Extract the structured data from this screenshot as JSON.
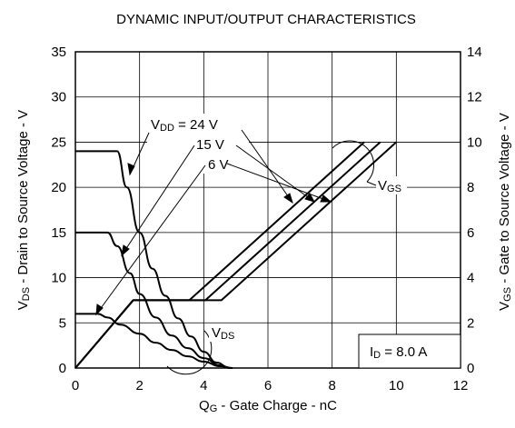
{
  "chart_data": {
    "type": "line",
    "title": "DYNAMIC INPUT/OUTPUT CHARACTERISTICS",
    "xlabel": "Q",
    "xlabel_sub": "G",
    "xlabel_rest": " - Gate Charge - nC",
    "ylabel_left": "V",
    "ylabel_left_sub": "DS",
    "ylabel_left_rest": " - Drain to Source Voltage - V",
    "ylabel_right": "V",
    "ylabel_right_sub": "GS",
    "ylabel_right_rest": " - Gate to Source Voltage - V",
    "xlim": [
      0,
      12
    ],
    "ylim_left": [
      0,
      35
    ],
    "ylim_right": [
      0,
      14
    ],
    "xticks": [
      "0",
      "2",
      "4",
      "6",
      "8",
      "10",
      "12"
    ],
    "yticks_left": [
      "0",
      "5",
      "10",
      "15",
      "20",
      "25",
      "30",
      "35"
    ],
    "yticks_right": [
      "0",
      "2",
      "4",
      "6",
      "8",
      "10",
      "12",
      "14"
    ],
    "grid": true,
    "annotations": {
      "vdd_prefix": "V",
      "vdd_sub": "DD",
      "vdd_24": " = 24 V",
      "vdd_15": "15 V",
      "vdd_6": "6 V",
      "vgs_main": "V",
      "vgs_sub": "GS",
      "vds_main": "V",
      "vds_sub": "DS",
      "id_main": "I",
      "id_sub": "D",
      "id_rest": " = 8.0 A"
    },
    "series": [
      {
        "group": "VDS",
        "vdd": "24 V",
        "axis": "left",
        "x": [
          0,
          1.3,
          1.6,
          2.0,
          2.4,
          2.8,
          3.2,
          3.6,
          4.0,
          4.4,
          4.8
        ],
        "y": [
          24,
          24,
          20,
          15,
          11,
          8,
          5.5,
          3.5,
          1.8,
          0.6,
          0
        ]
      },
      {
        "group": "VDS",
        "vdd": "15 V",
        "axis": "left",
        "x": [
          0,
          1.0,
          1.3,
          1.7,
          2.0,
          2.5,
          3.0,
          3.5,
          4.0,
          4.5,
          4.85
        ],
        "y": [
          15,
          15,
          13.5,
          10.5,
          8.2,
          5.6,
          3.6,
          2.2,
          1.1,
          0.3,
          0
        ]
      },
      {
        "group": "VDS",
        "vdd": "6 V",
        "axis": "left",
        "x": [
          0,
          0.7,
          1.0,
          1.4,
          2.0,
          2.5,
          3.0,
          3.5,
          4.0,
          4.5,
          4.9
        ],
        "y": [
          6,
          6,
          5.6,
          4.8,
          3.8,
          2.8,
          2.0,
          1.3,
          0.7,
          0.2,
          0
        ]
      },
      {
        "group": "VGS",
        "vdd": "6 V",
        "axis": "right",
        "x": [
          0,
          1.8,
          3.55,
          9.0
        ],
        "y": [
          0,
          3,
          3,
          10
        ]
      },
      {
        "group": "VGS",
        "vdd": "15 V",
        "axis": "right",
        "x": [
          0,
          1.8,
          4.05,
          9.5
        ],
        "y": [
          0,
          3,
          3,
          10
        ]
      },
      {
        "group": "VGS",
        "vdd": "24 V",
        "axis": "right",
        "x": [
          0,
          1.8,
          4.55,
          10.0
        ],
        "y": [
          0,
          3,
          3,
          10
        ]
      }
    ]
  }
}
